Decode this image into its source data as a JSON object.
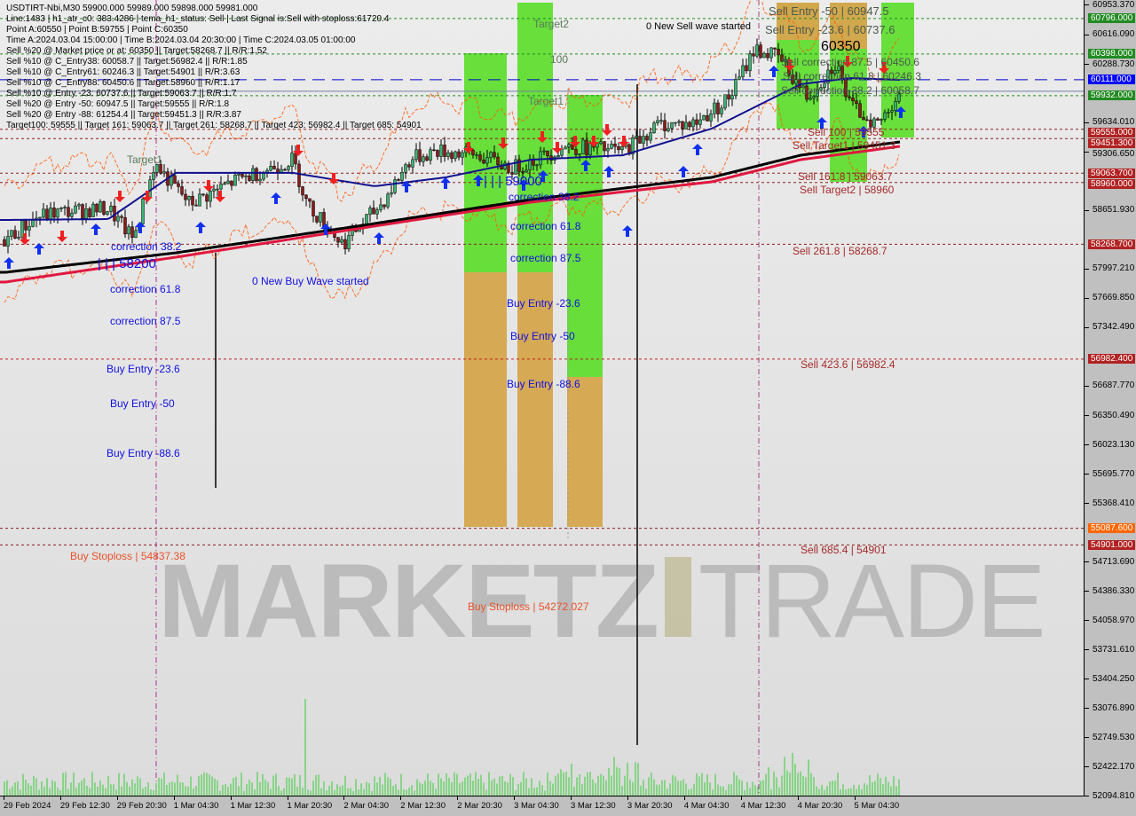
{
  "header": {
    "title": "USDTIRT-Nbi,M30  59900.000 59989.000 59898.000 59981.000",
    "lines": [
      "Line:1483 | h1_atr_c0: 383.4286 | tema_h1_status: Sell | Last Signal is:Sell with stoploss:61720.4",
      "Point A:60550 | Point B:59755 | Point C:60350",
      "Time A:2024.03.04 15:00:00 | Time B:2024.03.04 20:30:00 | Time C:2024.03.05 01:00:00",
      "Sell %20 @ Market price or at: 60350 || Target:58268.7 || R/R:1.52",
      "Sell %10 @ C_Entry38: 60058.7 || Target:56982.4 || R/R:1.85",
      "Sell %10 @ C_Entry61: 60246.3 || Target:54901 || R/R:3.63",
      "Sell %10 @ C_Entry88: 60450.6 || Target:58960 || R/R:1.17",
      "Sell %10 @ Entry -23: 60737.6 || Target:59063.7 || R/R:1.7",
      "Sell %20 @ Entry -50: 60947.5 || Target:59555 || R/R:1.8",
      "Sell %20 @ Entry -88: 61254.4 || Target:59451.3 || R/R:3.87",
      "Target100: 59555 || Target 161: 59063.7 || Target 261: 58268.7 || Target 423: 56982.4 || Target 685: 54901"
    ]
  },
  "watermark": {
    "left": "MARKETZ",
    "right": "TRADE"
  },
  "annotations": {
    "sell_entry_50": "Sell Entry -50 | 60947.5",
    "sell_entry_236": "Sell Entry -23.6 | 60737.6",
    "new_sell_wave": "0 New Sell wave started",
    "point_c": "60350",
    "sell_corr_875": "Sell correction 87.5 | 60450.6",
    "sell_corr_618": "Sell correction 61.8 | 60246.3",
    "sell_corr_382": "Sell correction 38.2 | 60058.7",
    "sell_100": "Sell 100 | 59555",
    "sell_target1": "Sell Target1 | 59451.3",
    "sell_1618": "Sell 161.8 | 59063.7",
    "sell_target2": "Sell Target2 | 58960",
    "sell_2618": "Sell 261.8 | 58268.7",
    "sell_4236": "Sell 423.6 | 56982.4",
    "sell_6854": "Sell 685.4 | 54901",
    "buy_stoploss_1": "Buy Stoploss | 54837.38",
    "buy_stoploss_2": "Buy Stoploss | 54272.027",
    "target2_mid": "Target2",
    "hundred_mid": "100",
    "target1_mid": "Target1",
    "target1_left": "Target1",
    "level_59000": "| | | 59000",
    "corr382_mid": "correction 38.2",
    "corr618_mid": "correction 61.8",
    "corr875_mid": "correction 87.5",
    "buy_entry_236_mid": "Buy Entry -23.6",
    "buy_entry_50_mid": "Buy Entry -50",
    "buy_entry_886_mid": "Buy Entry -88.6",
    "level_58200": "| | | 58200",
    "corr382_left": "correction 38.2",
    "corr618_left": "correction 61.8",
    "corr875_left": "correction 87.5",
    "buy_entry_236_left": "Buy Entry -23.6",
    "buy_entry_50_left": "Buy Entry -50",
    "buy_entry_886_left": "Buy Entry -88.6",
    "new_buy_wave": "0 New Buy Wave started"
  },
  "chart_data": {
    "type": "candlestick",
    "symbol": "USDTIRT-Nbi",
    "timeframe": "M30",
    "ylim": [
      52094.81,
      60953.37
    ],
    "y_ticks": [
      "60953.370",
      "60616.090",
      "60288.730",
      "59634.010",
      "59306.650",
      "58651.930",
      "57997.210",
      "57669.850",
      "57342.490",
      "56687.770",
      "56350.490",
      "56023.130",
      "55695.770",
      "55368.410",
      "54713.690",
      "54386.330",
      "54058.970",
      "53731.610",
      "53404.250",
      "53076.890",
      "52749.530",
      "52422.170",
      "52094.810"
    ],
    "x_ticks": [
      "29 Feb 2024",
      "29 Feb 12:30",
      "29 Feb 20:30",
      "1 Mar 04:30",
      "1 Mar 12:30",
      "1 Mar 20:30",
      "2 Mar 04:30",
      "2 Mar 12:30",
      "2 Mar 20:30",
      "3 Mar 04:30",
      "3 Mar 12:30",
      "3 Mar 20:30",
      "4 Mar 04:30",
      "4 Mar 12:30",
      "4 Mar 20:30",
      "5 Mar 04:30"
    ],
    "price_badges": [
      {
        "value": "60796.000",
        "color": "#228b22"
      },
      {
        "value": "60398.000",
        "color": "#228b22"
      },
      {
        "value": "60111.000",
        "color": "#0000ff"
      },
      {
        "value": "59932.000",
        "color": "#228b22"
      },
      {
        "value": "59555.000",
        "color": "#b22222"
      },
      {
        "value": "59451.300",
        "color": "#b22222"
      },
      {
        "value": "59063.700",
        "color": "#b22222"
      },
      {
        "value": "58960.000",
        "color": "#b22222"
      },
      {
        "value": "58268.700",
        "color": "#b22222"
      },
      {
        "value": "56982.400",
        "color": "#b22222"
      },
      {
        "value": "55087.600",
        "color": "#ff6600"
      },
      {
        "value": "54901.000",
        "color": "#b22222"
      }
    ],
    "close_path": [
      [
        "2024-02-29 05:00",
        58321
      ],
      [
        "2024-02-29 09:30",
        58570
      ],
      [
        "2024-02-29 12:00",
        58620
      ],
      [
        "2024-02-29 19:30",
        58669
      ],
      [
        "2024-02-29 23:00",
        58321
      ],
      [
        "2024-03-01 02:00",
        59166
      ],
      [
        "2024-03-01 07:00",
        58719
      ],
      [
        "2024-03-01 13:00",
        58967
      ],
      [
        "2024-03-01 21:30",
        59215
      ],
      [
        "2024-03-01 23:30",
        58719
      ],
      [
        "2024-03-02 04:30",
        58272
      ],
      [
        "2024-03-02 10:00",
        58719
      ],
      [
        "2024-03-02 14:00",
        59215
      ],
      [
        "2024-03-02 17:30",
        59314
      ],
      [
        "2024-03-02 23:30",
        59265
      ],
      [
        "2024-03-03 04:30",
        59116
      ],
      [
        "2024-03-03 12:00",
        59364
      ],
      [
        "2024-03-03 20:00",
        59314
      ],
      [
        "2024-03-04 01:00",
        59612
      ],
      [
        "2024-03-04 06:00",
        59612
      ],
      [
        "2024-03-04 11:00",
        59910
      ],
      [
        "2024-03-04 14:30",
        60456
      ],
      [
        "2024-03-04 18:00",
        60357
      ],
      [
        "2024-03-04 22:00",
        59910
      ],
      [
        "2024-03-05 02:00",
        60307
      ],
      [
        "2024-03-05 04:00",
        59811
      ],
      [
        "2024-03-05 08:00",
        59612
      ],
      [
        "2024-03-05 11:00",
        59981
      ]
    ],
    "ma_black": [
      [
        "2024-02-29 05:00",
        57954
      ],
      [
        "2024-03-01 05:00",
        58172
      ],
      [
        "2024-03-02 06:30",
        58470
      ],
      [
        "2024-03-03 07:00",
        58768
      ],
      [
        "2024-03-04 08:30",
        59017
      ],
      [
        "2024-03-04 21:00",
        59265
      ],
      [
        "2024-03-05 11:00",
        59414
      ]
    ],
    "ma_red": [
      [
        "2024-02-29 05:00",
        57845
      ],
      [
        "2024-03-01 05:00",
        58123
      ],
      [
        "2024-03-02 06:30",
        58441
      ],
      [
        "2024-03-03 07:00",
        58739
      ],
      [
        "2024-03-04 08:30",
        58967
      ],
      [
        "2024-03-04 21:00",
        59215
      ],
      [
        "2024-03-05 11:00",
        59364
      ]
    ],
    "ma_blue": [
      [
        "2024-02-29 05:00",
        58540
      ],
      [
        "2024-02-29 19:30",
        58550
      ],
      [
        "2024-03-01 05:00",
        59067
      ],
      [
        "2024-03-01 21:30",
        59067
      ],
      [
        "2024-03-02 09:00",
        58918
      ],
      [
        "2024-03-02 19:00",
        59017
      ],
      [
        "2024-03-03 07:00",
        59215
      ],
      [
        "2024-03-03 20:00",
        59265
      ],
      [
        "2024-03-04 08:30",
        59563
      ],
      [
        "2024-03-04 16:00",
        59861
      ],
      [
        "2024-03-04 21:00",
        60060
      ],
      [
        "2024-03-05 04:00",
        60129
      ],
      [
        "2024-03-05 11:00",
        60109
      ]
    ],
    "levels": [
      {
        "price": 60796,
        "color": "#228b22"
      },
      {
        "price": 60398,
        "color": "#228b22"
      },
      {
        "price": 60111,
        "color": "#0000cc",
        "style": "longdash"
      },
      {
        "price": 59981,
        "color": "#7080a0",
        "style": "solid"
      },
      {
        "price": 59932,
        "color": "#228b22"
      },
      {
        "price": 59555,
        "color": "#8b2020"
      },
      {
        "price": 59451.3,
        "color": "#8b2020"
      },
      {
        "price": 59063.7,
        "color": "#8b2020"
      },
      {
        "price": 58960,
        "color": "#8b2020"
      },
      {
        "price": 58268.7,
        "color": "#8b2020"
      },
      {
        "price": 56982.4,
        "color": "#c02020"
      },
      {
        "price": 55087.6,
        "color": "#8b2020"
      },
      {
        "price": 54901,
        "color": "#8b2020"
      }
    ]
  }
}
